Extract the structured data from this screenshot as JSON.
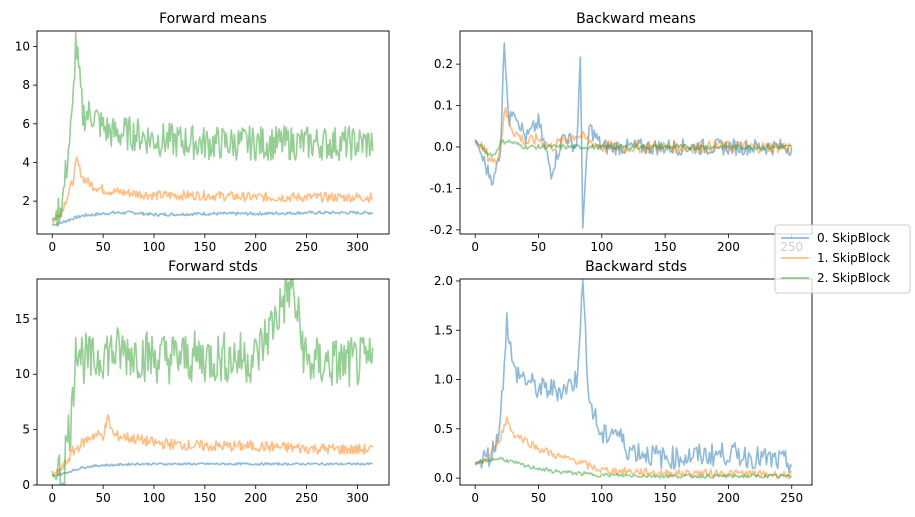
{
  "chart_data": [
    {
      "type": "line",
      "title": "Forward means",
      "xlim": [
        -15,
        331
      ],
      "ylim": [
        0.3,
        10.8
      ],
      "xticks": [
        0,
        50,
        100,
        150,
        200,
        250,
        300
      ],
      "yticks": [
        2,
        4,
        6,
        8,
        10
      ],
      "series": [
        {
          "name": "0. SkipBlock",
          "color": "#1f77b4",
          "x": [
            0,
            10,
            20,
            30,
            40,
            50,
            60,
            80,
            100,
            150,
            200,
            250,
            300,
            315
          ],
          "values": [
            0.75,
            0.9,
            1.1,
            1.25,
            1.3,
            1.35,
            1.4,
            1.4,
            1.3,
            1.35,
            1.35,
            1.4,
            1.4,
            1.4
          ]
        },
        {
          "name": "1. SkipBlock",
          "color": "#ff7f0e",
          "x": [
            0,
            10,
            20,
            24,
            30,
            40,
            50,
            60,
            80,
            100,
            150,
            200,
            250,
            300,
            315
          ],
          "values": [
            0.8,
            1.6,
            3.0,
            4.1,
            3.2,
            2.8,
            2.6,
            2.5,
            2.4,
            2.3,
            2.3,
            2.2,
            2.2,
            2.2,
            2.2
          ]
        },
        {
          "name": "2. SkipBlock",
          "color": "#2ca02c",
          "x": [
            0,
            10,
            20,
            23,
            30,
            40,
            50,
            60,
            80,
            100,
            150,
            200,
            250,
            300,
            315
          ],
          "values": [
            0.9,
            2.0,
            6.5,
            10.3,
            6.5,
            6.5,
            5.8,
            5.5,
            5.5,
            5.2,
            5.0,
            5.0,
            5.0,
            5.0,
            5.0
          ]
        }
      ]
    },
    {
      "type": "line",
      "title": "Backward means",
      "xlim": [
        -12,
        266
      ],
      "ylim": [
        -0.21,
        0.28
      ],
      "xticks": [
        0,
        50,
        100,
        150,
        200,
        250
      ],
      "yticks": [
        -0.2,
        -0.1,
        0.0,
        0.1,
        0.2
      ],
      "series": [
        {
          "name": "0. SkipBlock",
          "color": "#1f77b4",
          "x": [
            0,
            5,
            10,
            15,
            20,
            23,
            27,
            30,
            40,
            50,
            60,
            70,
            80,
            83,
            85,
            90,
            100,
            150,
            200,
            250
          ],
          "values": [
            0.015,
            -0.02,
            -0.06,
            -0.08,
            0.0,
            0.26,
            0.05,
            0.1,
            0.02,
            0.06,
            -0.06,
            0.03,
            0.0,
            0.2,
            -0.18,
            0.05,
            0.0,
            0.0,
            0.0,
            0.0
          ]
        },
        {
          "name": "1. SkipBlock",
          "color": "#ff7f0e",
          "x": [
            0,
            10,
            15,
            20,
            23,
            30,
            40,
            50,
            60,
            80,
            100,
            150,
            200,
            250
          ],
          "values": [
            0.015,
            -0.02,
            -0.04,
            0.0,
            0.09,
            0.04,
            0.01,
            0.02,
            0.0,
            0.03,
            0.0,
            0.0,
            0.0,
            0.0
          ]
        },
        {
          "name": "2. SkipBlock",
          "color": "#2ca02c",
          "x": [
            0,
            10,
            15,
            20,
            25,
            30,
            40,
            50,
            100,
            150,
            200,
            250
          ],
          "values": [
            0.015,
            -0.015,
            -0.02,
            0.01,
            0.015,
            0.01,
            0.0,
            0.0,
            0.0,
            0.0,
            0.0,
            0.0
          ]
        }
      ]
    },
    {
      "type": "line",
      "title": "Forward stds",
      "xlim": [
        -15,
        331
      ],
      "ylim": [
        0.0,
        18.6
      ],
      "xticks": [
        0,
        50,
        100,
        150,
        200,
        250,
        300
      ],
      "yticks": [
        0,
        5,
        10,
        15
      ],
      "series": [
        {
          "name": "0. SkipBlock",
          "color": "#1f77b4",
          "x": [
            0,
            10,
            20,
            30,
            40,
            50,
            60,
            80,
            100,
            150,
            200,
            250,
            300,
            315
          ],
          "values": [
            0.8,
            1.0,
            1.3,
            1.6,
            1.7,
            1.8,
            1.8,
            1.9,
            1.9,
            1.9,
            1.9,
            1.9,
            1.9,
            1.9
          ]
        },
        {
          "name": "1. SkipBlock",
          "color": "#ff7f0e",
          "x": [
            0,
            10,
            20,
            30,
            40,
            50,
            55,
            60,
            80,
            100,
            150,
            200,
            250,
            300,
            315
          ],
          "values": [
            0.8,
            1.5,
            3.0,
            3.8,
            4.5,
            4.5,
            6.0,
            4.5,
            4.2,
            3.8,
            3.5,
            3.5,
            3.3,
            3.2,
            3.2
          ]
        },
        {
          "name": "2. SkipBlock",
          "color": "#2ca02c",
          "x": [
            0,
            10,
            20,
            23,
            30,
            40,
            50,
            60,
            80,
            100,
            150,
            200,
            235,
            250,
            300,
            315
          ],
          "values": [
            0.8,
            1.2,
            7.0,
            13.3,
            11.5,
            11.0,
            12.0,
            12.0,
            12.0,
            11.5,
            11.5,
            11.5,
            18.0,
            11.0,
            11.0,
            11.0
          ]
        }
      ]
    },
    {
      "type": "line",
      "title": "Backward stds",
      "xlim": [
        -12,
        266
      ],
      "ylim": [
        -0.07,
        2.02
      ],
      "xticks": [
        0,
        50,
        100,
        150,
        200,
        250
      ],
      "yticks": [
        0.0,
        0.5,
        1.0,
        1.5,
        2.0
      ],
      "series": [
        {
          "name": "0. SkipBlock",
          "color": "#1f77b4",
          "x": [
            0,
            5,
            10,
            15,
            20,
            25,
            30,
            40,
            50,
            60,
            70,
            80,
            85,
            90,
            100,
            110,
            120,
            150,
            200,
            250
          ],
          "values": [
            0.15,
            0.18,
            0.22,
            0.3,
            0.6,
            1.62,
            1.1,
            1.0,
            0.9,
            0.9,
            0.9,
            1.0,
            1.95,
            0.8,
            0.4,
            0.5,
            0.3,
            0.2,
            0.25,
            0.15
          ]
        },
        {
          "name": "1. SkipBlock",
          "color": "#ff7f0e",
          "x": [
            0,
            10,
            15,
            20,
            25,
            30,
            40,
            50,
            60,
            70,
            80,
            90,
            100,
            150,
            200,
            250
          ],
          "values": [
            0.15,
            0.2,
            0.3,
            0.42,
            0.6,
            0.45,
            0.38,
            0.3,
            0.25,
            0.2,
            0.18,
            0.12,
            0.08,
            0.05,
            0.05,
            0.03
          ]
        },
        {
          "name": "2. SkipBlock",
          "color": "#2ca02c",
          "x": [
            0,
            10,
            20,
            30,
            40,
            50,
            60,
            80,
            100,
            150,
            200,
            250
          ],
          "values": [
            0.15,
            0.18,
            0.2,
            0.16,
            0.12,
            0.1,
            0.07,
            0.05,
            0.03,
            0.02,
            0.02,
            0.02
          ]
        }
      ]
    }
  ],
  "legend": {
    "items": [
      "0. SkipBlock",
      "1. SkipBlock",
      "2. SkipBlock"
    ],
    "colors": [
      "#1f77b4",
      "#ff7f0e",
      "#2ca02c"
    ],
    "placement": "right"
  }
}
